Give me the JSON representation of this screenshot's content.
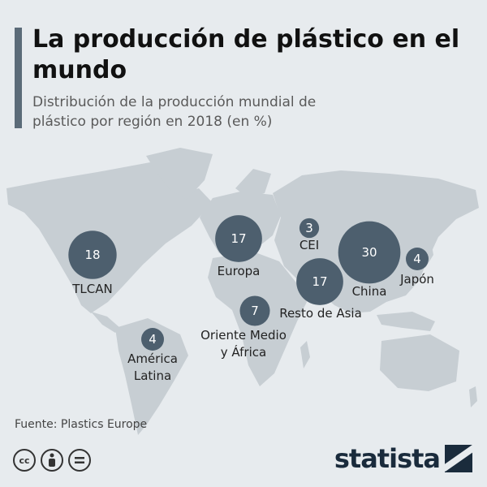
{
  "header": {
    "title": "La producción de plástico en el mundo",
    "subtitle": "Distribución de la producción mundial de plástico por región en 2018 (en %)"
  },
  "chart_data": {
    "type": "bubble-map",
    "unit": "%",
    "regions": [
      {
        "name": "TLCAN",
        "value": 18
      },
      {
        "name": "América Latina",
        "value": 4
      },
      {
        "name": "Europa",
        "value": 17
      },
      {
        "name": "CEI",
        "value": 3
      },
      {
        "name": "Oriente Medio y África",
        "value": 7
      },
      {
        "name": "Resto de Asia",
        "value": 17
      },
      {
        "name": "China",
        "value": 30
      },
      {
        "name": "Japón",
        "value": 4
      }
    ],
    "colors": {
      "bubble": "#4d5f6e",
      "land": "#c7ced3",
      "background": "#e7ebee"
    }
  },
  "footer": {
    "source": "Fuente: Plastics Europe",
    "brand": "statista",
    "license_icons": [
      "creative-commons-icon",
      "attribution-icon",
      "no-derivatives-icon"
    ]
  }
}
